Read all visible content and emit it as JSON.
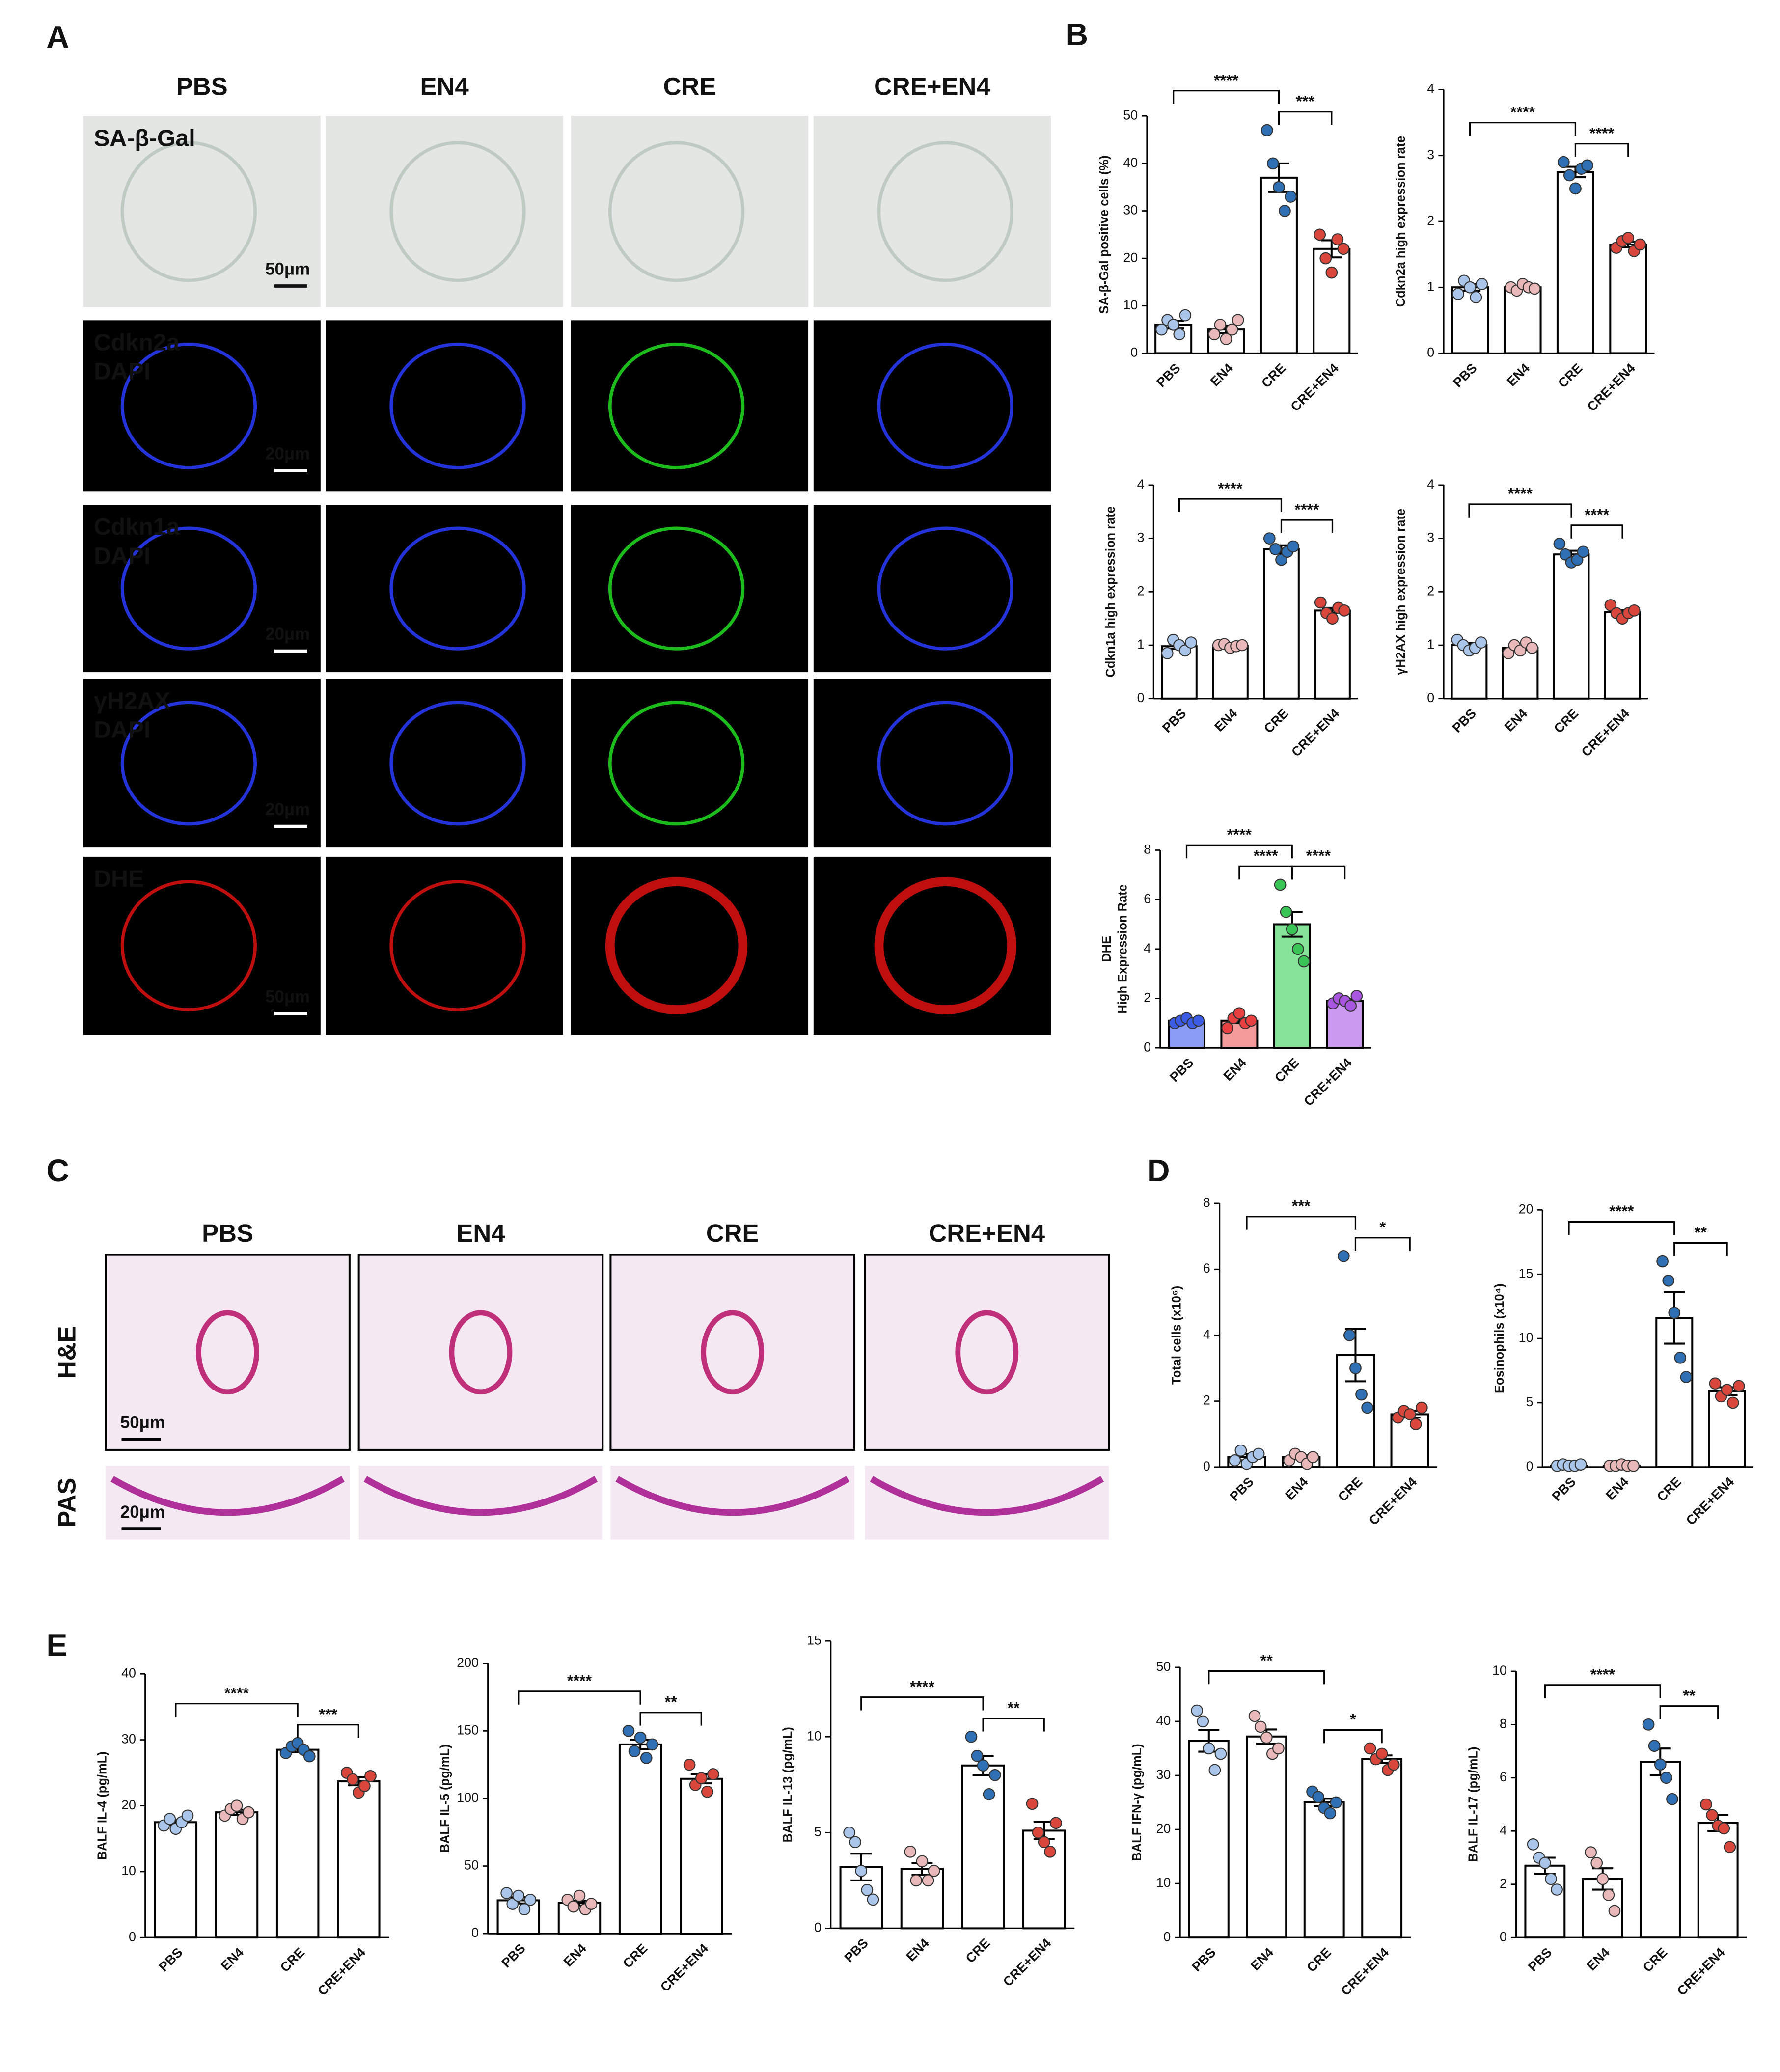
{
  "figure": {
    "panel_letters": [
      "A",
      "B",
      "C",
      "D",
      "E"
    ],
    "panel_a": {
      "columns": [
        "PBS",
        "EN4",
        "CRE",
        "CRE+EN4"
      ],
      "rows": [
        {
          "stains": [
            {
              "text": "SA-β-Gal",
              "color": "#333333"
            }
          ],
          "scale": "50μm",
          "background": "#e4e6e4"
        },
        {
          "stains": [
            {
              "text": "Cdkn2a",
              "color": "#22dd22"
            },
            {
              "text": "DAPI",
              "color": "#3a8fe0"
            }
          ],
          "scale": "20μm",
          "background": "#000000"
        },
        {
          "stains": [
            {
              "text": "Cdkn1a",
              "color": "#22dd22"
            },
            {
              "text": "DAPI",
              "color": "#3a8fe0"
            }
          ],
          "scale": "20μm",
          "background": "#000000"
        },
        {
          "stains": [
            {
              "text": "γH2AX",
              "color": "#22dd22"
            },
            {
              "text": "DAPI",
              "color": "#3a8fe0"
            }
          ],
          "scale": "20μm",
          "background": "#000000"
        },
        {
          "stains": [
            {
              "text": "DHE",
              "color": "#ff2020"
            }
          ],
          "scale": "50μm",
          "background": "#000000"
        }
      ]
    },
    "panel_c": {
      "columns": [
        "PBS",
        "EN4",
        "CRE",
        "CRE+EN4"
      ],
      "rows": [
        {
          "label": "H&E",
          "scale": "50μm"
        },
        {
          "label": "PAS",
          "scale": "20μm"
        }
      ]
    }
  },
  "chart_data": [
    {
      "type": "bar",
      "ylabel": "SA-β-Gal positive cells (%)",
      "categories": [
        "PBS",
        "EN4",
        "CRE",
        "CRE+EN4"
      ],
      "values": [
        6,
        5,
        37,
        22
      ],
      "errors": [
        0.8,
        0.8,
        3,
        1.8
      ],
      "points": [
        [
          5,
          7,
          6,
          4,
          8
        ],
        [
          4,
          6,
          3,
          5,
          7
        ],
        [
          47,
          40,
          35,
          30,
          33
        ],
        [
          25,
          20,
          17,
          24,
          22
        ]
      ],
      "bar_colors": [
        "#ffffff",
        "#ffffff",
        "#ffffff",
        "#ffffff"
      ],
      "point_colors": [
        "#a9c6ea",
        "#e9b8b8",
        "#2f6fb3",
        "#d9473c"
      ],
      "ylim": [
        0,
        50
      ],
      "yticks": [
        0,
        10,
        20,
        30,
        40,
        50
      ],
      "annotations": [
        {
          "between": [
            "PBS",
            "CRE"
          ],
          "label": "****"
        },
        {
          "between": [
            "CRE",
            "CRE+EN4"
          ],
          "label": "***"
        }
      ]
    },
    {
      "type": "bar",
      "ylabel": "Cdkn2a high expression rate",
      "categories": [
        "PBS",
        "EN4",
        "CRE",
        "CRE+EN4"
      ],
      "values": [
        1.0,
        1.0,
        2.75,
        1.65
      ],
      "errors": [
        0.05,
        0.02,
        0.08,
        0.04
      ],
      "points": [
        [
          0.9,
          1.1,
          1.0,
          0.85,
          1.05
        ],
        [
          1.0,
          0.95,
          1.05,
          1.0,
          0.98
        ],
        [
          2.9,
          2.7,
          2.5,
          2.8,
          2.85
        ],
        [
          1.6,
          1.7,
          1.75,
          1.55,
          1.65
        ]
      ],
      "bar_colors": [
        "#ffffff",
        "#ffffff",
        "#ffffff",
        "#ffffff"
      ],
      "point_colors": [
        "#a9c6ea",
        "#e9b8b8",
        "#2f6fb3",
        "#d9473c"
      ],
      "ylim": [
        0,
        4
      ],
      "yticks": [
        0,
        1,
        2,
        3,
        4
      ],
      "annotations": [
        {
          "between": [
            "PBS",
            "CRE"
          ],
          "label": "****"
        },
        {
          "between": [
            "CRE",
            "CRE+EN4"
          ],
          "label": "****"
        }
      ]
    },
    {
      "type": "bar",
      "ylabel": "Cdkn1a high expression rate",
      "categories": [
        "PBS",
        "EN4",
        "CRE",
        "CRE+EN4"
      ],
      "values": [
        0.98,
        0.99,
        2.8,
        1.65
      ],
      "errors": [
        0.05,
        0.02,
        0.07,
        0.05
      ],
      "points": [
        [
          0.85,
          1.1,
          1.0,
          0.9,
          1.05
        ],
        [
          1.0,
          1.02,
          0.95,
          0.98,
          1.0
        ],
        [
          3.0,
          2.8,
          2.6,
          2.75,
          2.85
        ],
        [
          1.8,
          1.6,
          1.5,
          1.7,
          1.65
        ]
      ],
      "bar_colors": [
        "#ffffff",
        "#ffffff",
        "#ffffff",
        "#ffffff"
      ],
      "point_colors": [
        "#a9c6ea",
        "#e9b8b8",
        "#2f6fb3",
        "#d9473c"
      ],
      "ylim": [
        0,
        4
      ],
      "yticks": [
        0,
        1,
        2,
        3,
        4
      ],
      "annotations": [
        {
          "between": [
            "PBS",
            "CRE"
          ],
          "label": "****"
        },
        {
          "between": [
            "CRE",
            "CRE+EN4"
          ],
          "label": "****"
        }
      ]
    },
    {
      "type": "bar",
      "ylabel": "γH2AX high expression rate",
      "categories": [
        "PBS",
        "EN4",
        "CRE",
        "CRE+EN4"
      ],
      "values": [
        1.0,
        0.95,
        2.7,
        1.62
      ],
      "errors": [
        0.04,
        0.04,
        0.07,
        0.04
      ],
      "points": [
        [
          1.1,
          1.0,
          0.9,
          0.95,
          1.05
        ],
        [
          0.85,
          1.0,
          0.9,
          1.05,
          0.95
        ],
        [
          2.9,
          2.7,
          2.55,
          2.6,
          2.75
        ],
        [
          1.75,
          1.6,
          1.5,
          1.6,
          1.65
        ]
      ],
      "bar_colors": [
        "#ffffff",
        "#ffffff",
        "#ffffff",
        "#ffffff"
      ],
      "point_colors": [
        "#a9c6ea",
        "#e9b8b8",
        "#2f6fb3",
        "#d9473c"
      ],
      "ylim": [
        0,
        4
      ],
      "yticks": [
        0,
        1,
        2,
        3,
        4
      ],
      "annotations": [
        {
          "between": [
            "PBS",
            "CRE"
          ],
          "label": "****"
        },
        {
          "between": [
            "CRE",
            "CRE+EN4"
          ],
          "label": "****"
        }
      ]
    },
    {
      "type": "bar",
      "ylabel": [
        "DHE",
        "High Expression Rate"
      ],
      "categories": [
        "PBS",
        "EN4",
        "CRE",
        "CRE+EN4"
      ],
      "values": [
        1.1,
        1.1,
        5.0,
        1.9
      ],
      "errors": [
        0.04,
        0.1,
        0.5,
        0.07
      ],
      "points": [
        [
          1.0,
          1.1,
          1.2,
          1.0,
          1.1
        ],
        [
          0.8,
          1.2,
          1.4,
          1.0,
          1.1
        ],
        [
          6.6,
          5.5,
          4.8,
          4.0,
          3.5
        ],
        [
          1.8,
          2.0,
          1.9,
          1.7,
          2.1
        ]
      ],
      "bar_colors": [
        "#8a9cf5",
        "#f59a9a",
        "#86e39a",
        "#cc99f0"
      ],
      "point_colors": [
        "#3c5ce6",
        "#e84040",
        "#39c455",
        "#a855e0"
      ],
      "ylim": [
        0,
        8
      ],
      "yticks": [
        0,
        2,
        4,
        6,
        8
      ],
      "annotations": [
        {
          "between": [
            "PBS",
            "CRE"
          ],
          "label": "****"
        },
        {
          "between": [
            "EN4",
            "CRE"
          ],
          "label": "****"
        },
        {
          "between": [
            "CRE",
            "CRE+EN4"
          ],
          "label": "****"
        }
      ]
    },
    {
      "type": "bar",
      "ylabel": "Total cells (x10⁶)",
      "categories": [
        "PBS",
        "EN4",
        "CRE",
        "CRE+EN4"
      ],
      "values": [
        0.3,
        0.3,
        3.4,
        1.6
      ],
      "errors": [
        0.1,
        0.06,
        0.8,
        0.1
      ],
      "points": [
        [
          0.2,
          0.5,
          0.1,
          0.3,
          0.4
        ],
        [
          0.2,
          0.4,
          0.3,
          0.1,
          0.3
        ],
        [
          6.4,
          4.0,
          3.0,
          2.2,
          1.8
        ],
        [
          1.5,
          1.7,
          1.6,
          1.3,
          1.8
        ]
      ],
      "bar_colors": [
        "#ffffff",
        "#ffffff",
        "#ffffff",
        "#ffffff"
      ],
      "point_colors": [
        "#a9c6ea",
        "#e9b8b8",
        "#2f6fb3",
        "#d9473c"
      ],
      "ylim": [
        0,
        8
      ],
      "yticks": [
        0,
        2,
        4,
        6,
        8
      ],
      "annotations": [
        {
          "between": [
            "PBS",
            "CRE"
          ],
          "label": "***"
        },
        {
          "between": [
            "CRE",
            "CRE+EN4"
          ],
          "label": "*"
        }
      ]
    },
    {
      "type": "bar",
      "ylabel": "Eosinophils (x10⁴)",
      "categories": [
        "PBS",
        "EN4",
        "CRE",
        "CRE+EN4"
      ],
      "values": [
        0.1,
        0.1,
        11.6,
        5.9
      ],
      "errors": [
        0.02,
        0.02,
        2,
        0.3
      ],
      "points": [
        [
          0.1,
          0.2,
          0.1,
          0.1,
          0.2
        ],
        [
          0.1,
          0.1,
          0.2,
          0.1,
          0.1
        ],
        [
          16,
          14.5,
          12,
          8.5,
          7
        ],
        [
          6.5,
          5.5,
          6,
          5,
          6.3
        ]
      ],
      "bar_colors": [
        "#ffffff",
        "#ffffff",
        "#ffffff",
        "#ffffff"
      ],
      "point_colors": [
        "#a9c6ea",
        "#e9b8b8",
        "#2f6fb3",
        "#d9473c"
      ],
      "ylim": [
        0,
        20
      ],
      "yticks": [
        0,
        5,
        10,
        15,
        20
      ],
      "annotations": [
        {
          "between": [
            "PBS",
            "CRE"
          ],
          "label": "****"
        },
        {
          "between": [
            "CRE",
            "CRE+EN4"
          ],
          "label": "**"
        }
      ]
    },
    {
      "type": "bar",
      "ylabel": "BALF IL-4 (pg/mL)",
      "categories": [
        "PBS",
        "EN4",
        "CRE",
        "CRE+EN4"
      ],
      "values": [
        17.5,
        19,
        28.5,
        23.7
      ],
      "errors": [
        0.4,
        0.4,
        0.4,
        0.6
      ],
      "points": [
        [
          17,
          18,
          16.5,
          17.5,
          18.5
        ],
        [
          18.5,
          19.5,
          20,
          18,
          19
        ],
        [
          28,
          29,
          29.5,
          28.5,
          27.5
        ],
        [
          25,
          24,
          22,
          23,
          24.5
        ]
      ],
      "bar_colors": [
        "#ffffff",
        "#ffffff",
        "#ffffff",
        "#ffffff"
      ],
      "point_colors": [
        "#a9c6ea",
        "#e9b8b8",
        "#2f6fb3",
        "#d9473c"
      ],
      "ylim": [
        0,
        40
      ],
      "yticks": [
        0,
        10,
        20,
        30,
        40
      ],
      "annotations": [
        {
          "between": [
            "PBS",
            "CRE"
          ],
          "label": "****"
        },
        {
          "between": [
            "CRE",
            "CRE+EN4"
          ],
          "label": "***"
        }
      ]
    },
    {
      "type": "bar",
      "ylabel": "BALF IL-5 (pg/mL)",
      "categories": [
        "PBS",
        "EN4",
        "CRE",
        "CRE+EN4"
      ],
      "values": [
        24.6,
        22.6,
        140,
        114.6
      ],
      "errors": [
        2.3,
        1.8,
        3.5,
        3.4
      ],
      "points": [
        [
          30,
          22,
          28,
          18,
          25
        ],
        [
          25,
          20,
          28,
          18,
          22
        ],
        [
          150,
          135,
          145,
          130,
          140
        ],
        [
          125,
          110,
          115,
          105,
          118
        ]
      ],
      "bar_colors": [
        "#ffffff",
        "#ffffff",
        "#ffffff",
        "#ffffff"
      ],
      "point_colors": [
        "#a9c6ea",
        "#e9b8b8",
        "#2f6fb3",
        "#d9473c"
      ],
      "ylim": [
        0,
        200
      ],
      "yticks": [
        0,
        50,
        100,
        150,
        200
      ],
      "annotations": [
        {
          "between": [
            "PBS",
            "CRE"
          ],
          "label": "****"
        },
        {
          "between": [
            "CRE",
            "CRE+EN4"
          ],
          "label": "**"
        }
      ]
    },
    {
      "type": "bar",
      "ylabel": "BALF IL-13 (pg/mL)",
      "categories": [
        "PBS",
        "EN4",
        "CRE",
        "CRE+EN4"
      ],
      "values": [
        3.2,
        3.1,
        8.5,
        5.1
      ],
      "errors": [
        0.7,
        0.3,
        0.5,
        0.45
      ],
      "points": [
        [
          5,
          4.5,
          3,
          2,
          1.5
        ],
        [
          4,
          2.5,
          3.5,
          2.5,
          3
        ],
        [
          10,
          9,
          8.5,
          7,
          8
        ],
        [
          6.5,
          5,
          4.5,
          4,
          5.5
        ]
      ],
      "bar_colors": [
        "#ffffff",
        "#ffffff",
        "#ffffff",
        "#ffffff"
      ],
      "point_colors": [
        "#a9c6ea",
        "#e9b8b8",
        "#2f6fb3",
        "#d9473c"
      ],
      "ylim": [
        0,
        15
      ],
      "yticks": [
        0,
        5,
        10,
        15
      ],
      "annotations": [
        {
          "between": [
            "PBS",
            "CRE"
          ],
          "label": "****"
        },
        {
          "between": [
            "CRE",
            "CRE+EN4"
          ],
          "label": "**"
        }
      ]
    },
    {
      "type": "bar",
      "ylabel": "BALF IFN-γ (pg/mL)",
      "categories": [
        "PBS",
        "EN4",
        "CRE",
        "CRE+EN4"
      ],
      "values": [
        36.4,
        37.2,
        25,
        33
      ],
      "errors": [
        2,
        1.3,
        0.7,
        0.7
      ],
      "points": [
        [
          42,
          40,
          35,
          31,
          34
        ],
        [
          41,
          39,
          37,
          34,
          35
        ],
        [
          27,
          26,
          24,
          23,
          25
        ],
        [
          35,
          33,
          34,
          31,
          32
        ]
      ],
      "bar_colors": [
        "#ffffff",
        "#ffffff",
        "#ffffff",
        "#ffffff"
      ],
      "point_colors": [
        "#a9c6ea",
        "#e9b8b8",
        "#2f6fb3",
        "#d9473c"
      ],
      "ylim": [
        0,
        50
      ],
      "yticks": [
        0,
        10,
        20,
        30,
        40,
        50
      ],
      "annotations": [
        {
          "between": [
            "PBS",
            "CRE"
          ],
          "label": "**"
        },
        {
          "between": [
            "CRE",
            "CRE+EN4"
          ],
          "label": "*"
        }
      ]
    },
    {
      "type": "bar",
      "ylabel": "BALF IL-17 (pg/mL)",
      "categories": [
        "PBS",
        "EN4",
        "CRE",
        "CRE+EN4"
      ],
      "values": [
        2.7,
        2.2,
        6.6,
        4.3
      ],
      "errors": [
        0.3,
        0.4,
        0.5,
        0.3
      ],
      "points": [
        [
          3.5,
          3.0,
          2.8,
          2.2,
          1.8
        ],
        [
          3.2,
          2.8,
          2.2,
          1.6,
          1.0
        ],
        [
          8.0,
          7.2,
          6.5,
          6.0,
          5.2
        ],
        [
          5.0,
          4.6,
          4.2,
          4.1,
          3.4
        ]
      ],
      "bar_colors": [
        "#ffffff",
        "#ffffff",
        "#ffffff",
        "#ffffff"
      ],
      "point_colors": [
        "#a9c6ea",
        "#e9b8b8",
        "#2f6fb3",
        "#d9473c"
      ],
      "ylim": [
        0,
        10
      ],
      "yticks": [
        0,
        2,
        4,
        6,
        8,
        10
      ],
      "annotations": [
        {
          "between": [
            "PBS",
            "CRE"
          ],
          "label": "****"
        },
        {
          "between": [
            "CRE",
            "CRE+EN4"
          ],
          "label": "**"
        }
      ]
    }
  ]
}
